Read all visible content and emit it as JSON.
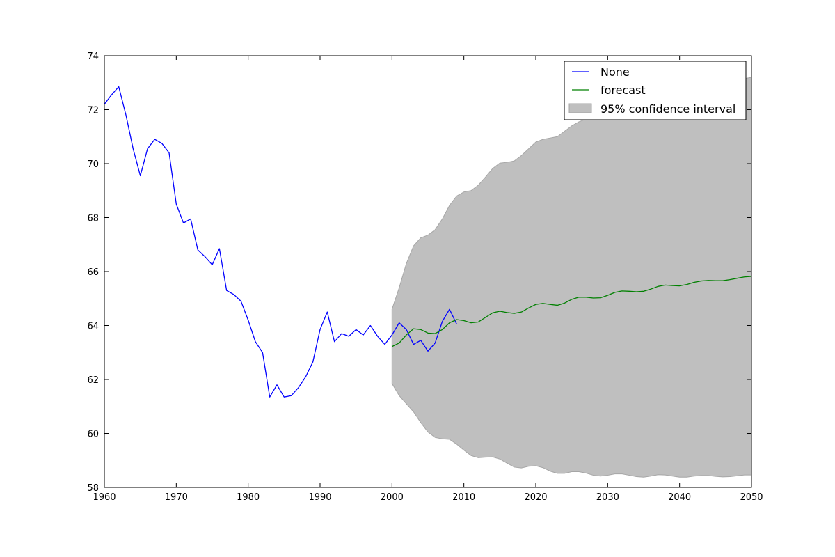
{
  "chart_data": {
    "type": "line",
    "xlim": [
      1960,
      2050
    ],
    "ylim": [
      58,
      74
    ],
    "x_ticks": [
      "1960",
      "1970",
      "1980",
      "1990",
      "2000",
      "2010",
      "2020",
      "2030",
      "2040",
      "2050"
    ],
    "y_ticks": [
      "58",
      "60",
      "62",
      "64",
      "66",
      "68",
      "70",
      "72",
      "74"
    ],
    "grid": false,
    "legend_position": "top-right",
    "legend": [
      "None",
      "forecast",
      "95% confidence interval"
    ],
    "colors": {
      "observed": "#0000ff",
      "forecast": "#008000",
      "interval": "#bfbfbf"
    },
    "series": [
      {
        "name": "None",
        "x": [
          1960,
          1961,
          1962,
          1963,
          1964,
          1965,
          1966,
          1967,
          1968,
          1969,
          1970,
          1971,
          1972,
          1973,
          1974,
          1975,
          1976,
          1977,
          1978,
          1979,
          1980,
          1981,
          1982,
          1983,
          1984,
          1985,
          1986,
          1987,
          1988,
          1989,
          1990,
          1991,
          1992,
          1993,
          1994,
          1995,
          1996,
          1997,
          1998,
          1999,
          2000,
          2001,
          2002,
          2003,
          2004,
          2005,
          2006,
          2007,
          2008,
          2009
        ],
        "y": [
          72.2,
          72.55,
          72.85,
          71.8,
          70.55,
          69.55,
          70.55,
          70.9,
          70.75,
          70.4,
          68.5,
          67.8,
          67.95,
          66.8,
          66.55,
          66.25,
          66.85,
          65.3,
          65.15,
          64.9,
          64.2,
          63.4,
          63.0,
          61.35,
          61.8,
          61.35,
          61.4,
          61.7,
          62.1,
          62.65,
          63.85,
          64.5,
          63.4,
          63.7,
          63.6,
          63.85,
          63.65,
          64.0,
          63.6,
          63.3,
          63.65,
          64.1,
          63.85,
          63.3,
          63.45,
          63.05,
          63.35,
          64.15,
          64.6,
          64.05
        ]
      },
      {
        "name": "forecast",
        "x": [
          2000,
          2001,
          2002,
          2003,
          2004,
          2005,
          2006,
          2007,
          2008,
          2009,
          2010,
          2011,
          2012,
          2013,
          2014,
          2015,
          2016,
          2017,
          2018,
          2019,
          2020,
          2021,
          2022,
          2023,
          2024,
          2025,
          2026,
          2027,
          2028,
          2029,
          2030,
          2031,
          2032,
          2033,
          2034,
          2035,
          2036,
          2037,
          2038,
          2039,
          2040,
          2041,
          2042,
          2043,
          2044,
          2045,
          2046,
          2047,
          2048,
          2049,
          2050
        ],
        "y": [
          63.22,
          63.35,
          63.65,
          63.88,
          63.85,
          63.72,
          63.7,
          63.85,
          64.1,
          64.22,
          64.18,
          64.1,
          64.13,
          64.3,
          64.47,
          64.53,
          64.48,
          64.45,
          64.5,
          64.65,
          64.78,
          64.82,
          64.78,
          64.75,
          64.83,
          64.97,
          65.05,
          65.05,
          65.02,
          65.03,
          65.12,
          65.23,
          65.28,
          65.27,
          65.25,
          65.27,
          65.35,
          65.45,
          65.5,
          65.48,
          65.47,
          65.52,
          65.6,
          65.65,
          65.67,
          65.66,
          65.66,
          65.7,
          65.75,
          65.8,
          65.82
        ]
      }
    ],
    "confidence_interval": {
      "name": "95% confidence interval",
      "x": [
        2000,
        2001,
        2002,
        2003,
        2004,
        2005,
        2006,
        2007,
        2008,
        2009,
        2010,
        2011,
        2012,
        2013,
        2014,
        2015,
        2016,
        2017,
        2018,
        2019,
        2020,
        2021,
        2022,
        2023,
        2024,
        2025,
        2026,
        2027,
        2028,
        2029,
        2030,
        2031,
        2032,
        2033,
        2034,
        2035,
        2036,
        2037,
        2038,
        2039,
        2040,
        2041,
        2042,
        2043,
        2044,
        2045,
        2046,
        2047,
        2048,
        2049,
        2050
      ],
      "upper": [
        64.6,
        65.4,
        66.3,
        66.95,
        67.25,
        67.35,
        67.55,
        67.95,
        68.45,
        68.8,
        68.95,
        69.0,
        69.2,
        69.5,
        69.82,
        70.02,
        70.05,
        70.1,
        70.3,
        70.55,
        70.8,
        70.9,
        70.95,
        71.0,
        71.2,
        71.4,
        71.55,
        71.65,
        71.7,
        71.75,
        71.8,
        71.85,
        71.9,
        71.95,
        72.0,
        72.05,
        72.1,
        72.15,
        72.2,
        72.25,
        72.3,
        72.35,
        72.45,
        72.55,
        72.65,
        72.75,
        72.85,
        72.95,
        73.05,
        73.15,
        73.2
      ],
      "lower": [
        61.85,
        61.4,
        61.1,
        60.8,
        60.4,
        60.05,
        59.85,
        59.8,
        59.78,
        59.6,
        59.38,
        59.18,
        59.1,
        59.12,
        59.13,
        59.05,
        58.9,
        58.75,
        58.72,
        58.78,
        58.8,
        58.73,
        58.6,
        58.52,
        58.52,
        58.58,
        58.58,
        58.53,
        58.45,
        58.42,
        58.45,
        58.5,
        58.5,
        58.45,
        58.4,
        58.38,
        58.42,
        58.47,
        58.46,
        58.42,
        58.38,
        58.38,
        58.42,
        58.44,
        58.44,
        58.41,
        58.39,
        58.4,
        58.43,
        58.46,
        58.46
      ]
    }
  }
}
